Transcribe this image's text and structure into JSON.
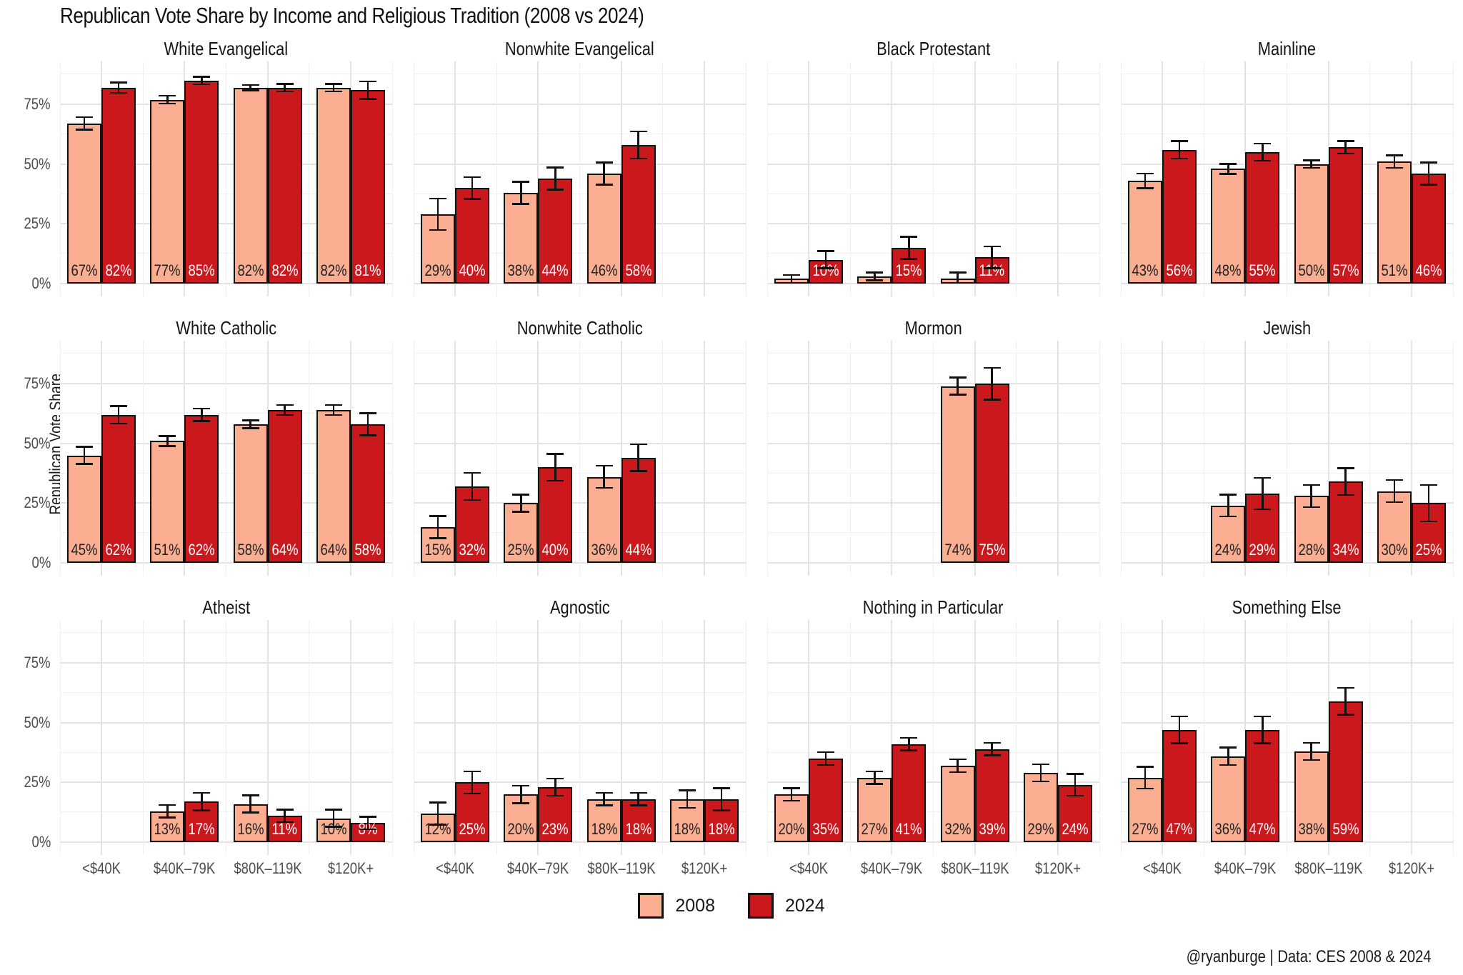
{
  "title": "Republican Vote Share by Income and Religious Tradition (2008 vs 2024)",
  "y_axis_title": "Republican Vote Share",
  "caption": "@ryanburge  |  Data: CES 2008 & 2024",
  "legend": [
    {
      "label": "2008",
      "color": "#FBAE92"
    },
    {
      "label": "2024",
      "color": "#CB181D"
    }
  ],
  "colors": {
    "s2008": "#FBAE92",
    "s2024": "#CB181D",
    "bar_stroke": "#111111",
    "grid_major": "#e3e3e3",
    "grid_minor": "#f0f0f0",
    "tick_text": "#4d4d4d",
    "label_2008_text": "#222222",
    "label_2024_text": "#ffffff"
  },
  "chart_data": {
    "type": "bar",
    "title": "Republican Vote Share by Income and Religious Tradition (2008 vs 2024)",
    "ylabel": "Republican Vote Share",
    "ylim": [
      0,
      93
    ],
    "yticks": [
      0,
      25,
      50,
      75
    ],
    "ytick_labels": [
      "0%",
      "25%",
      "50%",
      "75%"
    ],
    "grid": "on",
    "legend_position": "bottom",
    "series_names": [
      "2008",
      "2024"
    ],
    "income_categories": [
      "<$40K",
      "$40K–79K",
      "$80K–119K",
      "$120K+"
    ],
    "facets": [
      {
        "name": "White Evangelical",
        "slug": "white-evangelical",
        "groups": [
          {
            "income_index": 0,
            "v2008": 67,
            "v2024": 82,
            "e2008": 3,
            "e2024": 2.5,
            "l2008": "67%",
            "l2024": "82%"
          },
          {
            "income_index": 1,
            "v2008": 77,
            "v2024": 85,
            "e2008": 2,
            "e2024": 2,
            "l2008": "77%",
            "l2024": "85%"
          },
          {
            "income_index": 2,
            "v2008": 82,
            "v2024": 82,
            "e2008": 1.5,
            "e2024": 2,
            "l2008": "82%",
            "l2024": "82%"
          },
          {
            "income_index": 3,
            "v2008": 82,
            "v2024": 81,
            "e2008": 2,
            "e2024": 4,
            "l2008": "82%",
            "l2024": "81%"
          }
        ]
      },
      {
        "name": "Nonwhite Evangelical",
        "slug": "nonwhite-evangelical",
        "groups": [
          {
            "income_index": 0,
            "v2008": 29,
            "v2024": 40,
            "e2008": 7,
            "e2024": 5,
            "l2008": "29%",
            "l2024": "40%"
          },
          {
            "income_index": 1,
            "v2008": 38,
            "v2024": 44,
            "e2008": 5,
            "e2024": 5,
            "l2008": "38%",
            "l2024": "44%"
          },
          {
            "income_index": 2,
            "v2008": 46,
            "v2024": 58,
            "e2008": 5,
            "e2024": 6,
            "l2008": "46%",
            "l2024": "58%"
          }
        ]
      },
      {
        "name": "Black Protestant",
        "slug": "black-protestant",
        "groups": [
          {
            "income_index": 0,
            "v2008": 2,
            "v2024": 10,
            "e2008": 2,
            "e2024": 4,
            "l2008": "",
            "l2024": "10%"
          },
          {
            "income_index": 1,
            "v2008": 3,
            "v2024": 15,
            "e2008": 2,
            "e2024": 5,
            "l2008": "",
            "l2024": "15%"
          },
          {
            "income_index": 2,
            "v2008": 2,
            "v2024": 11,
            "e2008": 3,
            "e2024": 5,
            "l2008": "",
            "l2024": "11%"
          }
        ]
      },
      {
        "name": "Mainline",
        "slug": "mainline",
        "groups": [
          {
            "income_index": 0,
            "v2008": 43,
            "v2024": 56,
            "e2008": 3.5,
            "e2024": 4,
            "l2008": "43%",
            "l2024": "56%"
          },
          {
            "income_index": 1,
            "v2008": 48,
            "v2024": 55,
            "e2008": 2.5,
            "e2024": 4,
            "l2008": "48%",
            "l2024": "55%"
          },
          {
            "income_index": 2,
            "v2008": 50,
            "v2024": 57,
            "e2008": 2,
            "e2024": 3,
            "l2008": "50%",
            "l2024": "57%"
          },
          {
            "income_index": 3,
            "v2008": 51,
            "v2024": 46,
            "e2008": 3,
            "e2024": 5,
            "l2008": "51%",
            "l2024": "46%"
          }
        ]
      },
      {
        "name": "White Catholic",
        "slug": "white-catholic",
        "groups": [
          {
            "income_index": 0,
            "v2008": 45,
            "v2024": 62,
            "e2008": 4,
            "e2024": 4,
            "l2008": "45%",
            "l2024": "62%"
          },
          {
            "income_index": 1,
            "v2008": 51,
            "v2024": 62,
            "e2008": 2.5,
            "e2024": 3,
            "l2008": "51%",
            "l2024": "62%"
          },
          {
            "income_index": 2,
            "v2008": 58,
            "v2024": 64,
            "e2008": 2,
            "e2024": 2.5,
            "l2008": "58%",
            "l2024": "64%"
          },
          {
            "income_index": 3,
            "v2008": 64,
            "v2024": 58,
            "e2008": 2.5,
            "e2024": 5,
            "l2008": "64%",
            "l2024": "58%"
          }
        ]
      },
      {
        "name": "Nonwhite Catholic",
        "slug": "nonwhite-catholic",
        "groups": [
          {
            "income_index": 0,
            "v2008": 15,
            "v2024": 32,
            "e2008": 5,
            "e2024": 6,
            "l2008": "15%",
            "l2024": "32%"
          },
          {
            "income_index": 1,
            "v2008": 25,
            "v2024": 40,
            "e2008": 4,
            "e2024": 6,
            "l2008": "25%",
            "l2024": "40%"
          },
          {
            "income_index": 2,
            "v2008": 36,
            "v2024": 44,
            "e2008": 5,
            "e2024": 6,
            "l2008": "36%",
            "l2024": "44%"
          }
        ]
      },
      {
        "name": "Mormon",
        "slug": "mormon",
        "groups": [
          {
            "income_index": 2,
            "v2008": 74,
            "v2024": 75,
            "e2008": 4,
            "e2024": 7,
            "l2008": "74%",
            "l2024": "75%"
          }
        ]
      },
      {
        "name": "Jewish",
        "slug": "jewish",
        "groups": [
          {
            "income_index": 1,
            "v2008": 24,
            "v2024": 29,
            "e2008": 5,
            "e2024": 7,
            "l2008": "24%",
            "l2024": "29%"
          },
          {
            "income_index": 2,
            "v2008": 28,
            "v2024": 34,
            "e2008": 5,
            "e2024": 6,
            "l2008": "28%",
            "l2024": "34%"
          },
          {
            "income_index": 3,
            "v2008": 30,
            "v2024": 25,
            "e2008": 5,
            "e2024": 8,
            "l2008": "30%",
            "l2024": "25%"
          }
        ]
      },
      {
        "name": "Atheist",
        "slug": "atheist",
        "groups": [
          {
            "income_index": 1,
            "v2008": 13,
            "v2024": 17,
            "e2008": 3,
            "e2024": 4,
            "l2008": "13%",
            "l2024": "17%"
          },
          {
            "income_index": 2,
            "v2008": 16,
            "v2024": 11,
            "e2008": 4,
            "e2024": 3,
            "l2008": "16%",
            "l2024": "11%"
          },
          {
            "income_index": 3,
            "v2008": 10,
            "v2024": 8,
            "e2008": 4,
            "e2024": 3,
            "l2008": "10%",
            "l2024": "8%"
          }
        ]
      },
      {
        "name": "Agnostic",
        "slug": "agnostic",
        "groups": [
          {
            "income_index": 0,
            "v2008": 12,
            "v2024": 25,
            "e2008": 5,
            "e2024": 5,
            "l2008": "12%",
            "l2024": "25%"
          },
          {
            "income_index": 1,
            "v2008": 20,
            "v2024": 23,
            "e2008": 4,
            "e2024": 4,
            "l2008": "20%",
            "l2024": "23%"
          },
          {
            "income_index": 2,
            "v2008": 18,
            "v2024": 18,
            "e2008": 3,
            "e2024": 3,
            "l2008": "18%",
            "l2024": "18%"
          },
          {
            "income_index": 3,
            "v2008": 18,
            "v2024": 18,
            "e2008": 4,
            "e2024": 5,
            "l2008": "18%",
            "l2024": "18%"
          }
        ]
      },
      {
        "name": "Nothing in Particular",
        "slug": "nothing-in-particular",
        "groups": [
          {
            "income_index": 0,
            "v2008": 20,
            "v2024": 35,
            "e2008": 3,
            "e2024": 3,
            "l2008": "20%",
            "l2024": "35%"
          },
          {
            "income_index": 1,
            "v2008": 27,
            "v2024": 41,
            "e2008": 3,
            "e2024": 3,
            "l2008": "27%",
            "l2024": "41%"
          },
          {
            "income_index": 2,
            "v2008": 32,
            "v2024": 39,
            "e2008": 3,
            "e2024": 3,
            "l2008": "32%",
            "l2024": "39%"
          },
          {
            "income_index": 3,
            "v2008": 29,
            "v2024": 24,
            "e2008": 4,
            "e2024": 5,
            "l2008": "29%",
            "l2024": "24%"
          }
        ]
      },
      {
        "name": "Something Else",
        "slug": "something-else",
        "groups": [
          {
            "income_index": 0,
            "v2008": 27,
            "v2024": 47,
            "e2008": 5,
            "e2024": 6,
            "l2008": "27%",
            "l2024": "47%"
          },
          {
            "income_index": 1,
            "v2008": 36,
            "v2024": 47,
            "e2008": 4,
            "e2024": 6,
            "l2008": "36%",
            "l2024": "47%"
          },
          {
            "income_index": 2,
            "v2008": 38,
            "v2024": 59,
            "e2008": 4,
            "e2024": 6,
            "l2008": "38%",
            "l2024": "59%"
          }
        ]
      }
    ]
  }
}
